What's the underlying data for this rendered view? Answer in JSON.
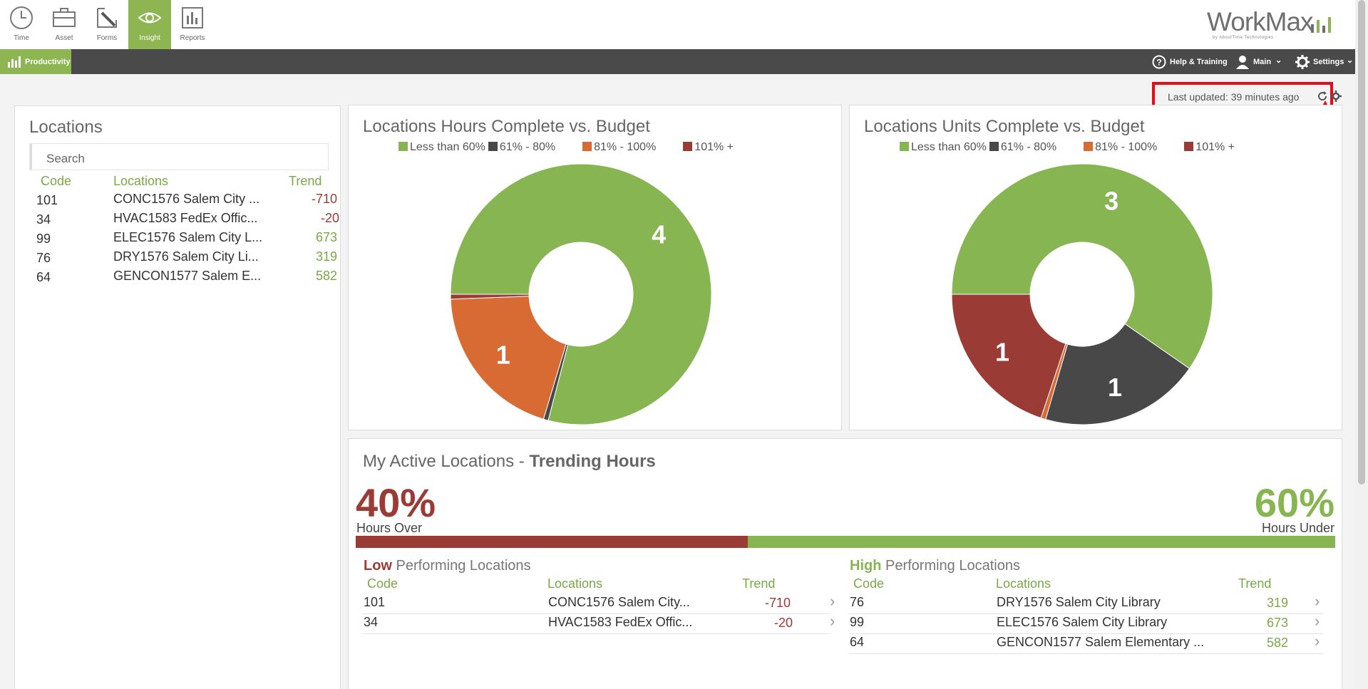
{
  "nav": {
    "tabs": [
      {
        "label": "Time",
        "icon": "clock-icon"
      },
      {
        "label": "Asset",
        "icon": "briefcase-icon"
      },
      {
        "label": "Forms",
        "icon": "pencil-icon"
      },
      {
        "label": "Insight",
        "icon": "eye-icon",
        "active": true
      },
      {
        "label": "Reports",
        "icon": "bar-chart-icon"
      }
    ],
    "logo_text": "WorkMax",
    "logo_sub": "by AboutTime Technologies"
  },
  "menubar": {
    "productivity_label": "Productivity",
    "help_label": "Help & Training",
    "user_label": "Main",
    "settings_label": "Settings"
  },
  "status": {
    "last_updated": "Last updated: 39 minutes ago"
  },
  "locations_panel": {
    "title": "Locations",
    "search_placeholder": "Search",
    "headers": {
      "code": "Code",
      "locations": "Locations",
      "trend": "Trend"
    },
    "rows": [
      {
        "code": "101",
        "location": "CONC1576 Salem City ...",
        "trend": "-710"
      },
      {
        "code": "34",
        "location": "HVAC1583 FedEx Offic...",
        "trend": "-20"
      },
      {
        "code": "99",
        "location": "ELEC1576 Salem City L...",
        "trend": "673"
      },
      {
        "code": "76",
        "location": "DRY1576 Salem City Li...",
        "trend": "319"
      },
      {
        "code": "64",
        "location": "GENCON1577 Salem E...",
        "trend": "582"
      }
    ]
  },
  "colors": {
    "green": "#86b552",
    "dark": "#484848",
    "orange": "#d86a33",
    "red": "#9a3b36"
  },
  "legend": [
    "Less than 60%",
    "61% - 80%",
    "81% - 100%",
    "101% +"
  ],
  "chart_data": [
    {
      "type": "pie",
      "title": "Locations Hours Complete vs. Budget",
      "labels": [
        "Less than 60%",
        "61% - 80%",
        "81% - 100%",
        "101% +"
      ],
      "values": [
        4,
        0.03,
        1,
        0.03
      ],
      "data_labels": [
        "4",
        "",
        "1",
        ""
      ]
    },
    {
      "type": "pie",
      "title": "Locations Units Complete vs. Budget",
      "labels": [
        "Less than 60%",
        "61% - 80%",
        "81% - 100%",
        "101% +"
      ],
      "values": [
        3,
        1,
        0.03,
        1
      ],
      "data_labels": [
        "3",
        "1",
        "",
        "1"
      ]
    }
  ],
  "trending": {
    "title_prefix": "My Active Locations - ",
    "title_bold": "Trending Hours",
    "over_pct": "40%",
    "over_label": "Hours Over",
    "under_pct": "60%",
    "under_label": "Hours Under",
    "over_fraction": 0.4,
    "low": {
      "title_bold": "Low",
      "title_rest": " Performing Locations",
      "headers": {
        "code": "Code",
        "locations": "Locations",
        "trend": "Trend"
      },
      "rows": [
        {
          "code": "101",
          "location": "CONC1576 Salem City...",
          "trend": "-710"
        },
        {
          "code": "34",
          "location": "HVAC1583 FedEx Offic...",
          "trend": "-20"
        }
      ]
    },
    "high": {
      "title_bold": "High",
      "title_rest": " Performing Locations",
      "headers": {
        "code": "Code",
        "locations": "Locations",
        "trend": "Trend"
      },
      "rows": [
        {
          "code": "76",
          "location": "DRY1576 Salem City Library",
          "trend": "319"
        },
        {
          "code": "99",
          "location": "ELEC1576 Salem City Library",
          "trend": "673"
        },
        {
          "code": "64",
          "location": "GENCON1577 Salem Elementary ...",
          "trend": "582"
        }
      ]
    }
  }
}
